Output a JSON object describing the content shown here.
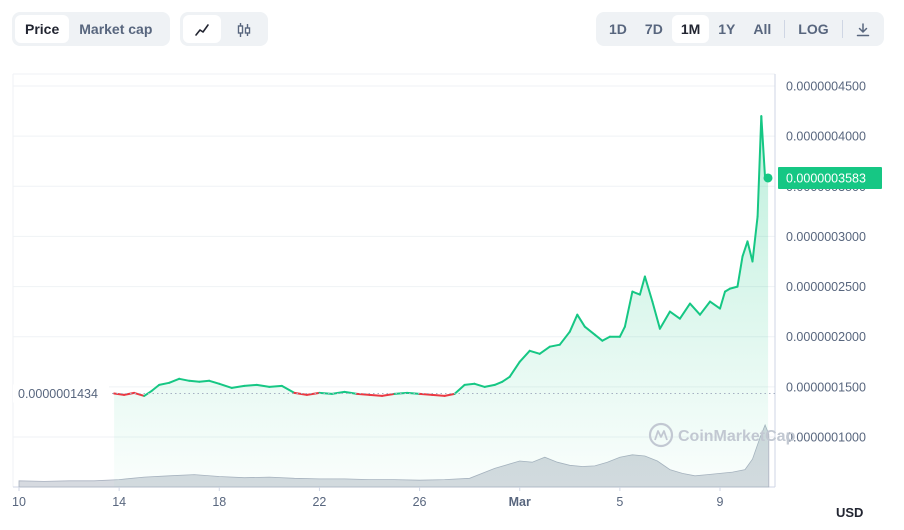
{
  "toolbar": {
    "metric_tabs": [
      "Price",
      "Market cap"
    ],
    "active_metric": "Price",
    "chart_modes": [
      {
        "icon": "line-chart-icon"
      },
      {
        "icon": "candlestick-icon"
      }
    ],
    "active_mode": "line-chart-icon",
    "ranges": [
      "1D",
      "7D",
      "1M",
      "1Y",
      "All"
    ],
    "active_range": "1M",
    "log_label": "LOG",
    "download_icon": "download-icon"
  },
  "currency": "USD",
  "watermark": "CoinMarketCap",
  "colors": {
    "up": "#16c784",
    "down": "#ea3943",
    "grid": "#eff2f5",
    "reference": "#a6b0c3"
  },
  "chart_data": {
    "type": "line",
    "y_ticks": [
      "0.0000004500",
      "0.0000004000",
      "0.0000003500",
      "0.0000003000",
      "0.0000002500",
      "0.0000002000",
      "0.0000001500",
      "0.0000001000"
    ],
    "y_tick_values": [
      4.5e-07,
      4e-07,
      3.5e-07,
      3e-07,
      2.5e-07,
      2e-07,
      1.5e-07,
      1e-07
    ],
    "x_ticks": [
      "10",
      "14",
      "18",
      "22",
      "26",
      "Mar",
      "5",
      "9"
    ],
    "x_tick_days": [
      10,
      14,
      18,
      22,
      26,
      30,
      34,
      38
    ],
    "x_unit": "days since Feb 0",
    "open_label": "0.0000001434",
    "open_value": 1.434e-07,
    "current_label": "0.0000003583",
    "current_value": 3.583e-07,
    "series": [
      {
        "x": [
          13.8,
          14.2,
          14.6,
          15.0,
          15.3,
          15.6,
          16.0,
          16.4,
          16.8,
          17.2,
          17.6,
          18.0,
          18.5,
          19.0,
          19.5,
          20.0,
          20.5,
          21.0,
          21.5,
          22.0,
          22.5,
          23.0,
          23.5,
          24.0,
          24.5,
          25.0,
          25.5,
          26.0,
          26.5,
          27.0,
          27.4,
          27.8,
          28.2,
          28.6,
          29.0,
          29.3,
          29.6,
          30.0,
          30.4,
          30.8,
          31.2,
          31.6,
          32.0,
          32.3,
          32.6,
          33.0,
          33.3,
          33.6,
          34.0,
          34.2,
          34.5,
          34.8,
          35.0,
          35.3,
          35.6,
          36.0,
          36.4,
          36.8,
          37.2,
          37.6,
          38.0,
          38.2,
          38.4,
          38.7,
          38.9,
          39.1,
          39.3,
          39.5,
          39.65,
          39.8,
          39.92
        ],
        "y": [
          1.434e-07,
          1.42e-07,
          1.44e-07,
          1.41e-07,
          1.46e-07,
          1.52e-07,
          1.54e-07,
          1.58e-07,
          1.56e-07,
          1.55e-07,
          1.56e-07,
          1.53e-07,
          1.49e-07,
          1.51e-07,
          1.52e-07,
          1.5e-07,
          1.51e-07,
          1.44e-07,
          1.42e-07,
          1.44e-07,
          1.43e-07,
          1.45e-07,
          1.43e-07,
          1.42e-07,
          1.41e-07,
          1.43e-07,
          1.44e-07,
          1.43e-07,
          1.42e-07,
          1.41e-07,
          1.43e-07,
          1.52e-07,
          1.53e-07,
          1.5e-07,
          1.52e-07,
          1.55e-07,
          1.6e-07,
          1.75e-07,
          1.86e-07,
          1.83e-07,
          1.9e-07,
          1.92e-07,
          2.05e-07,
          2.22e-07,
          2.1e-07,
          2.02e-07,
          1.96e-07,
          2e-07,
          2e-07,
          2.1e-07,
          2.45e-07,
          2.42e-07,
          2.6e-07,
          2.35e-07,
          2.08e-07,
          2.25e-07,
          2.18e-07,
          2.33e-07,
          2.22e-07,
          2.35e-07,
          2.28e-07,
          2.45e-07,
          2.48e-07,
          2.5e-07,
          2.8e-07,
          2.95e-07,
          2.75e-07,
          3.2e-07,
          4.2e-07,
          3.58e-07,
          3.583e-07
        ]
      }
    ],
    "volume": {
      "x": [
        10,
        11,
        12,
        13,
        14,
        15,
        16,
        17,
        18,
        19,
        20,
        21,
        22,
        23,
        24,
        25,
        26,
        27,
        28,
        29,
        30,
        30.5,
        31,
        31.5,
        32,
        32.5,
        33,
        33.5,
        34,
        34.5,
        35,
        35.5,
        36,
        36.5,
        37,
        37.5,
        38,
        38.5,
        39,
        39.3,
        39.6,
        39.8,
        39.95
      ],
      "v": [
        0.1,
        0.09,
        0.1,
        0.1,
        0.12,
        0.16,
        0.18,
        0.2,
        0.17,
        0.15,
        0.16,
        0.14,
        0.13,
        0.13,
        0.12,
        0.12,
        0.11,
        0.12,
        0.14,
        0.3,
        0.42,
        0.4,
        0.48,
        0.4,
        0.35,
        0.33,
        0.34,
        0.4,
        0.48,
        0.52,
        0.5,
        0.42,
        0.28,
        0.22,
        0.18,
        0.2,
        0.22,
        0.24,
        0.28,
        0.45,
        0.8,
        1.0,
        0.85
      ]
    }
  }
}
